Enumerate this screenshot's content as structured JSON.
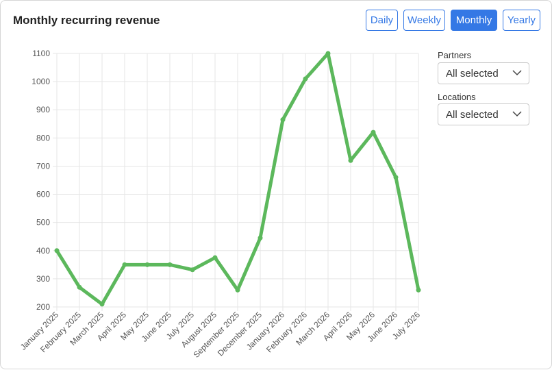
{
  "header": {
    "title": "Monthly recurring revenue"
  },
  "periods": [
    "Daily",
    "Weekly",
    "Monthly",
    "Yearly"
  ],
  "active_period": "Monthly",
  "filters": {
    "partners": {
      "label": "Partners",
      "value": "All selected"
    },
    "locations": {
      "label": "Locations",
      "value": "All selected"
    }
  },
  "colors": {
    "accent": "#3478e5",
    "line": "#5cb85c",
    "grid": "#e5e5e5"
  },
  "chart_data": {
    "type": "line",
    "title": "",
    "xlabel": "",
    "ylabel": "",
    "categories": [
      "January 2025",
      "February 2025",
      "March 2025",
      "April 2025",
      "May 2025",
      "June 2025",
      "July 2025",
      "August 2025",
      "September 2025",
      "December 2025",
      "January 2026",
      "February 2026",
      "March 2026",
      "April 2026",
      "May 2026",
      "June 2026",
      "July 2026"
    ],
    "series": [
      {
        "values": [
          400,
          270,
          210,
          350,
          350,
          350,
          332,
          375,
          260,
          445,
          865,
          1010,
          1100,
          720,
          820,
          660,
          260
        ]
      }
    ],
    "ylim": [
      200,
      1100
    ],
    "yticks": [
      200,
      300,
      400,
      500,
      600,
      700,
      800,
      900,
      1000,
      1100
    ],
    "grid": true
  }
}
